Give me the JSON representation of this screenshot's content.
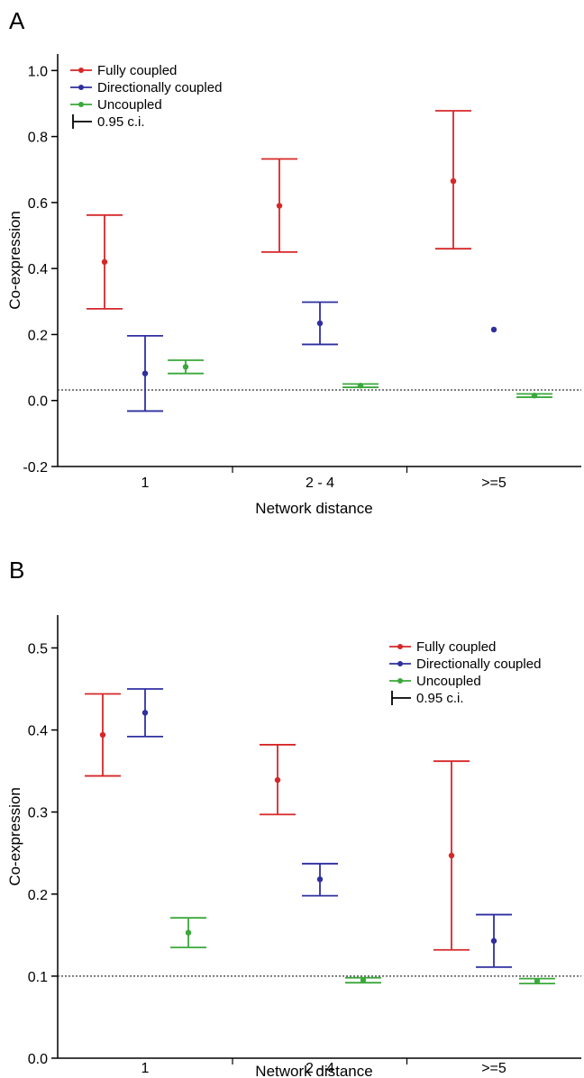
{
  "panels": [
    {
      "letter": "A",
      "chart_data": {
        "type": "scatter",
        "subtype": "point-with-error-bars",
        "xlabel": "Network distance",
        "ylabel": "Co-expression",
        "categories": [
          "1",
          "2 - 4",
          ">=5"
        ],
        "ylim": [
          -0.2,
          1.05
        ],
        "yticks": [
          "-0.2",
          "0.0",
          "0.2",
          "0.4",
          "0.6",
          "0.8",
          "1.0"
        ],
        "reference_line": 0.032,
        "legend": {
          "position": "top-left",
          "ci_label": "0.95 c.i."
        },
        "series": [
          {
            "name": "Fully coupled",
            "color": "#d62728",
            "points": [
              {
                "y": 0.42,
                "lo": 0.278,
                "hi": 0.562
              },
              {
                "y": 0.59,
                "lo": 0.45,
                "hi": 0.732
              },
              {
                "y": 0.665,
                "lo": 0.46,
                "hi": 0.878
              }
            ]
          },
          {
            "name": "Directionally coupled",
            "color": "#2f2fa0",
            "points": [
              {
                "y": 0.082,
                "lo": -0.032,
                "hi": 0.196
              },
              {
                "y": 0.234,
                "lo": 0.17,
                "hi": 0.298
              },
              {
                "y": 0.215,
                "lo": null,
                "hi": null
              }
            ]
          },
          {
            "name": "Uncoupled",
            "color": "#3aa83a",
            "points": [
              {
                "y": 0.102,
                "lo": 0.082,
                "hi": 0.122
              },
              {
                "y": 0.045,
                "lo": 0.04,
                "hi": 0.05
              },
              {
                "y": 0.015,
                "lo": 0.01,
                "hi": 0.02
              }
            ]
          }
        ]
      }
    },
    {
      "letter": "B",
      "chart_data": {
        "type": "scatter",
        "subtype": "point-with-error-bars",
        "xlabel": "Network distance",
        "ylabel": "Co-expression",
        "categories": [
          "1",
          "2 - 4",
          ">=5"
        ],
        "ylim": [
          0.0,
          0.54
        ],
        "yticks": [
          "0.0",
          "0.1",
          "0.2",
          "0.3",
          "0.4",
          "0.5"
        ],
        "reference_line": 0.1,
        "legend": {
          "position": "top-right",
          "ci_label": "0.95 c.i."
        },
        "series": [
          {
            "name": "Fully coupled",
            "color": "#d62728",
            "points": [
              {
                "y": 0.394,
                "lo": 0.344,
                "hi": 0.444
              },
              {
                "y": 0.339,
                "lo": 0.297,
                "hi": 0.382
              },
              {
                "y": 0.247,
                "lo": 0.132,
                "hi": 0.362
              }
            ]
          },
          {
            "name": "Directionally coupled",
            "color": "#2f2fa0",
            "points": [
              {
                "y": 0.421,
                "lo": 0.392,
                "hi": 0.45
              },
              {
                "y": 0.218,
                "lo": 0.198,
                "hi": 0.237
              },
              {
                "y": 0.143,
                "lo": 0.111,
                "hi": 0.175
              }
            ]
          },
          {
            "name": "Uncoupled",
            "color": "#3aa83a",
            "points": [
              {
                "y": 0.153,
                "lo": 0.135,
                "hi": 0.171
              },
              {
                "y": 0.095,
                "lo": 0.092,
                "hi": 0.098
              },
              {
                "y": 0.094,
                "lo": 0.091,
                "hi": 0.097
              }
            ]
          }
        ]
      }
    }
  ]
}
